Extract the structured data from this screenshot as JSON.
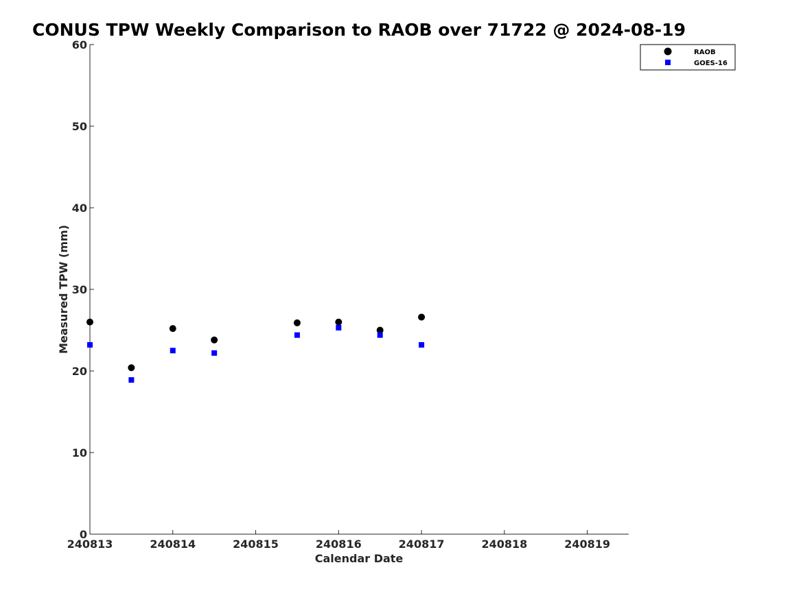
{
  "chart_data": {
    "type": "scatter",
    "title": "CONUS TPW Weekly Comparison to RAOB over 71722 @ 2024-08-19",
    "xlabel": "Calendar Date",
    "ylabel": "Measured TPW (mm)",
    "xlim": [
      240813,
      240819.5
    ],
    "ylim": [
      0,
      60
    ],
    "x_ticks": [
      "240813",
      "240814",
      "240815",
      "240816",
      "240817",
      "240818",
      "240819"
    ],
    "y_ticks": [
      "0",
      "10",
      "20",
      "30",
      "40",
      "50",
      "60"
    ],
    "grid": false,
    "legend_position": "top-right",
    "series": [
      {
        "name": "RAOB",
        "marker": "circle",
        "color": "#000000",
        "points": [
          [
            240813.0,
            26.0
          ],
          [
            240813.5,
            20.4
          ],
          [
            240814.0,
            25.2
          ],
          [
            240814.5,
            23.8
          ],
          [
            240815.5,
            25.9
          ],
          [
            240816.0,
            26.0
          ],
          [
            240816.5,
            25.0
          ],
          [
            240817.0,
            26.6
          ]
        ]
      },
      {
        "name": "GOES-16",
        "marker": "square",
        "color": "#0000ff",
        "points": [
          [
            240813.0,
            23.2
          ],
          [
            240813.5,
            18.9
          ],
          [
            240814.0,
            22.5
          ],
          [
            240814.5,
            22.2
          ],
          [
            240815.5,
            24.4
          ],
          [
            240816.0,
            25.3
          ],
          [
            240816.5,
            24.4
          ],
          [
            240817.0,
            23.2
          ]
        ]
      }
    ]
  }
}
